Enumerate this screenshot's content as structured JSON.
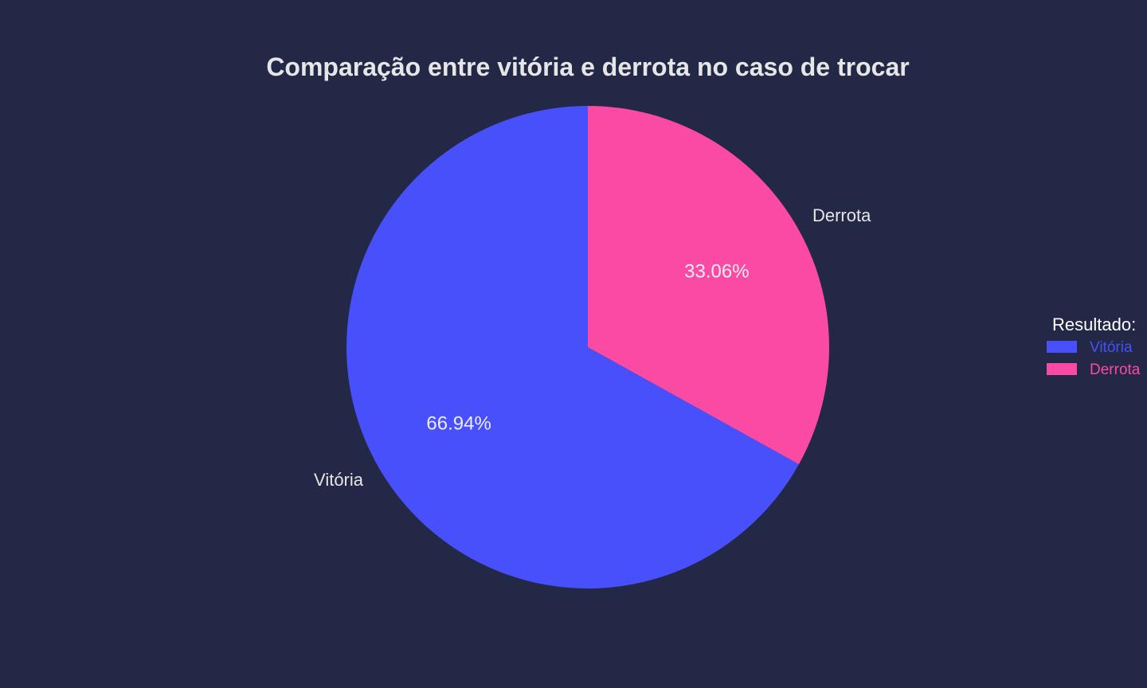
{
  "chart_data": {
    "type": "pie",
    "title": "Comparação entre vitória e derrota no caso de trocar",
    "labels": [
      "Vitória",
      "Derrota"
    ],
    "values": [
      66.94,
      33.06
    ],
    "value_labels": [
      "66.94%",
      "33.06%"
    ],
    "colors": [
      "#4850fb",
      "#fb4aa3"
    ],
    "legend": {
      "title": "Resultado:",
      "position": "right",
      "entries": [
        "Vitória",
        "Derrota"
      ]
    }
  },
  "theme": {
    "background": "#222845",
    "text_color": "#e6e6e6"
  }
}
